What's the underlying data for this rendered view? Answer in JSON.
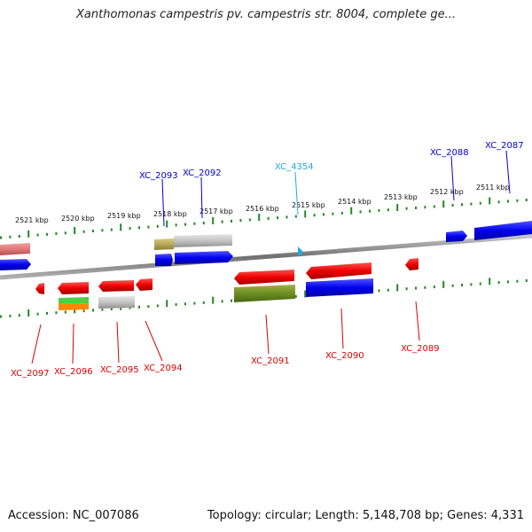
{
  "title": "Xanthomonas campestris pv. campestris str. 8004, complete ge...",
  "footer": {
    "accession": "Accession: NC_007086",
    "stats": "Topology: circular; Length: 5,148,708 bp; Genes: 4,331"
  },
  "colors": {
    "forward_gene": "#0000ee",
    "reverse_gene": "#ee0000",
    "highlight_gene": "#22aadd",
    "backbone": "#808080",
    "scale_ticks": "#228822"
  },
  "scale_labels": [
    "2521 kbp",
    "2520 kbp",
    "2519 kbp",
    "2518 kbp",
    "2517 kbp",
    "2516 kbp",
    "2515 kbp",
    "2514 kbp",
    "2513 kbp",
    "2512 kbp",
    "2511 kbp"
  ],
  "gene_labels_top": [
    {
      "id": "XC_2093",
      "color": "#0000cc"
    },
    {
      "id": "XC_2092",
      "color": "#0000cc"
    },
    {
      "id": "XC_4354",
      "color": "#22aadd"
    },
    {
      "id": "XC_2088",
      "color": "#0000cc"
    },
    {
      "id": "XC_2087",
      "color": "#0000cc"
    }
  ],
  "gene_labels_bottom": [
    {
      "id": "XC_2097",
      "color": "#dd0000"
    },
    {
      "id": "XC_2096",
      "color": "#dd0000"
    },
    {
      "id": "XC_2095",
      "color": "#dd0000"
    },
    {
      "id": "XC_2094",
      "color": "#dd0000"
    },
    {
      "id": "XC_2091",
      "color": "#dd0000"
    },
    {
      "id": "XC_2090",
      "color": "#dd0000"
    },
    {
      "id": "XC_2089",
      "color": "#dd0000"
    }
  ]
}
